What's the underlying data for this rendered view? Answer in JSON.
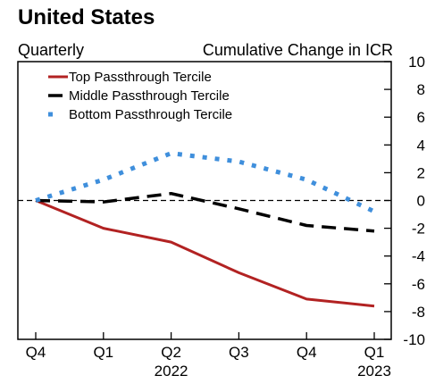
{
  "chart_data": {
    "type": "line",
    "title": "United States",
    "subtitle_left": "Quarterly",
    "subtitle_right": "Cumulative Change in ICR",
    "categories": [
      "Q4",
      "Q1",
      "Q2",
      "Q3",
      "Q4",
      "Q1"
    ],
    "year_labels": [
      {
        "index": 2,
        "label": "2022"
      },
      {
        "index": 5,
        "label": "2023"
      }
    ],
    "ylim": [
      -10,
      10
    ],
    "yticks": [
      10,
      8,
      6,
      4,
      2,
      0,
      -2,
      -4,
      -6,
      -8,
      -10
    ],
    "y_axis_side": "right",
    "zero_line": true,
    "grid": false,
    "legend_position": "top-left",
    "series": [
      {
        "name": "Top Passthrough Tercile",
        "color": "#b22222",
        "style": "solid",
        "values": [
          0,
          -2.0,
          -3.0,
          -5.2,
          -7.1,
          -7.6
        ]
      },
      {
        "name": "Middle Passthrough Tercile",
        "color": "#000000",
        "style": "dashed",
        "values": [
          0,
          -0.1,
          0.5,
          -0.6,
          -1.8,
          -2.2
        ]
      },
      {
        "name": "Bottom Passthrough Tercile",
        "color": "#3f8fdc",
        "style": "dotted",
        "values": [
          0,
          1.5,
          3.4,
          2.8,
          1.5,
          -0.8
        ]
      }
    ]
  }
}
